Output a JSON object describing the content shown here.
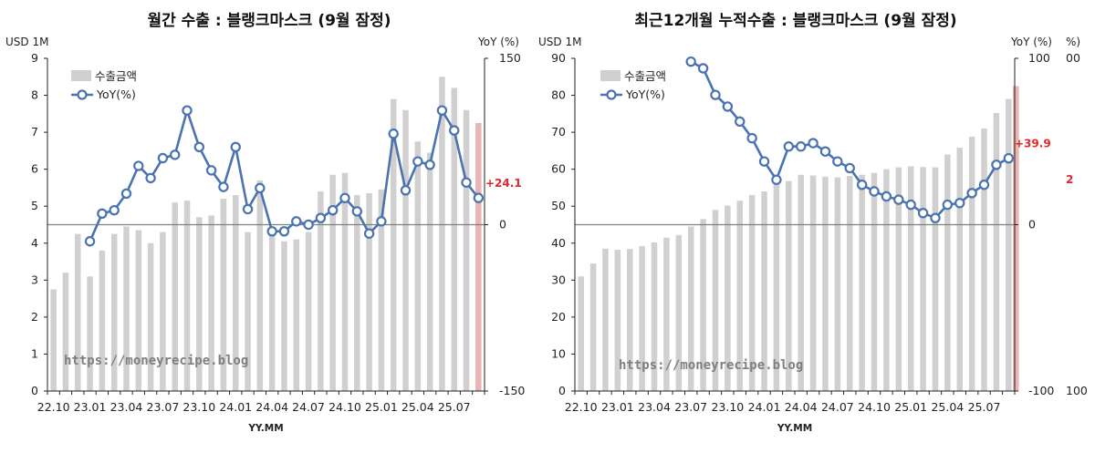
{
  "chart_data": [
    {
      "type": "bar+line",
      "title": "월간 수출 : 블랭크마스크 (9월 잠정)",
      "left_unit": "USD 1M",
      "right_unit": "YoY (%)",
      "xlabel": "YY.MM",
      "y_left_lim": [
        0,
        9
      ],
      "y_left_ticks": [
        "0",
        "1",
        "2",
        "3",
        "4",
        "5",
        "6",
        "7",
        "8",
        "9"
      ],
      "y_right_lim": [
        -150,
        150
      ],
      "y_right_ticks": [
        "-150",
        "0",
        "150"
      ],
      "x_tick_labels": [
        "22.10",
        "23.01",
        "23.04",
        "23.07",
        "23.10",
        "24.01",
        "24.04",
        "24.07",
        "24.10",
        "25.01",
        "25.04",
        "25.07"
      ],
      "categories": [
        "22.10",
        "22.11",
        "22.12",
        "23.01",
        "23.02",
        "23.03",
        "23.04",
        "23.05",
        "23.06",
        "23.07",
        "23.08",
        "23.09",
        "23.10",
        "23.11",
        "23.12",
        "24.01",
        "24.02",
        "24.03",
        "24.04",
        "24.05",
        "24.06",
        "24.07",
        "24.08",
        "24.09",
        "24.10",
        "24.11",
        "24.12",
        "25.01",
        "25.02",
        "25.03",
        "25.04",
        "25.05",
        "25.06",
        "25.07",
        "25.08",
        "25.09"
      ],
      "series": [
        {
          "name": "수출금액",
          "axis": "left",
          "values": [
            2.75,
            3.2,
            4.25,
            3.1,
            3.8,
            4.25,
            4.45,
            4.35,
            4.0,
            4.3,
            5.1,
            5.15,
            4.7,
            4.75,
            5.2,
            5.3,
            4.3,
            5.7,
            4.2,
            4.05,
            4.1,
            4.3,
            5.4,
            5.85,
            5.9,
            5.3,
            5.35,
            5.45,
            7.9,
            7.6,
            6.75,
            6.45,
            8.5,
            8.2,
            7.6,
            7.25
          ]
        },
        {
          "name": "YoY(%)",
          "axis": "right",
          "values": [
            null,
            null,
            null,
            -15,
            10,
            13,
            28,
            53,
            42,
            60,
            63,
            103,
            70,
            49,
            34,
            70,
            14,
            33,
            -6,
            -6,
            3,
            0,
            6,
            13,
            24,
            12,
            -8,
            3,
            82,
            31,
            57,
            54,
            103,
            85,
            38,
            24.1
          ]
        }
      ],
      "last_bar_highlight": "#e8b4b4",
      "annotation": "+24.1",
      "legend_position": "top-left",
      "watermark": "https://moneyrecipe.blog"
    },
    {
      "type": "bar+line",
      "title": "최근12개월 누적수출 : 블랭크마스크 (9월 잠정)",
      "left_unit": "USD 1M",
      "right_unit": "YoY (%)",
      "xlabel": "YY.MM",
      "y_left_lim": [
        0,
        90
      ],
      "y_left_ticks": [
        "0",
        "10",
        "20",
        "30",
        "40",
        "50",
        "60",
        "70",
        "80",
        "90"
      ],
      "y_right_lim": [
        -100,
        100
      ],
      "y_right_ticks": [
        "-100",
        "0",
        "100"
      ],
      "x_tick_labels": [
        "22.10",
        "23.01",
        "23.04",
        "23.07",
        "23.10",
        "24.01",
        "24.04",
        "24.07",
        "24.10",
        "25.01",
        "25.04",
        "25.07"
      ],
      "categories": [
        "22.10",
        "22.11",
        "22.12",
        "23.01",
        "23.02",
        "23.03",
        "23.04",
        "23.05",
        "23.06",
        "23.07",
        "23.08",
        "23.09",
        "23.10",
        "23.11",
        "23.12",
        "24.01",
        "24.02",
        "24.03",
        "24.04",
        "24.05",
        "24.06",
        "24.07",
        "24.08",
        "24.09",
        "24.10",
        "24.11",
        "24.12",
        "25.01",
        "25.02",
        "25.03",
        "25.04",
        "25.05",
        "25.06",
        "25.07",
        "25.08",
        "25.09"
      ],
      "series": [
        {
          "name": "수출금액",
          "axis": "left",
          "values": [
            31,
            34.5,
            38.5,
            38.2,
            38.4,
            39.2,
            40.2,
            41.5,
            42.2,
            44.5,
            46.5,
            49,
            50.2,
            51.5,
            53,
            54,
            56.2,
            56.8,
            58.5,
            58.3,
            58,
            57.8,
            58.2,
            58.5,
            59,
            60,
            60.5,
            60.8,
            60.6,
            60.5,
            64,
            65.8,
            68.8,
            71,
            75.2,
            79
          ]
        },
        {
          "name": "YoY(%)",
          "axis": "right",
          "values": [
            null,
            null,
            null,
            null,
            null,
            null,
            null,
            null,
            null,
            98,
            94,
            78,
            71,
            62,
            52,
            38,
            27,
            47,
            47,
            49,
            44,
            38,
            34,
            24,
            20,
            17,
            15,
            12,
            7,
            4,
            12,
            13,
            19,
            24,
            36,
            39.9
          ]
        }
      ],
      "extra_bar": {
        "category_index": 36,
        "value": 82.5,
        "color": "#e8b4b4"
      },
      "annotation": "+39.9",
      "legend_position": "top-left",
      "watermark": "https://moneyrecipe.blog"
    }
  ],
  "legend": {
    "bar_label": "수출금액",
    "line_label": "YoY(%)"
  },
  "colors": {
    "bar": "#d0d0d0",
    "highlight": "#e8b4b4",
    "line": "#4a73b0",
    "marker_fill": "#ffffff",
    "annotation": "#e3262a",
    "zero_line": "#808080",
    "axis": "#222222"
  },
  "right_edge_fragments": {
    "left_tick_100": "00",
    "unit_fragment": "%)",
    "red_fragment": "2",
    "bottom_tick": "100"
  }
}
